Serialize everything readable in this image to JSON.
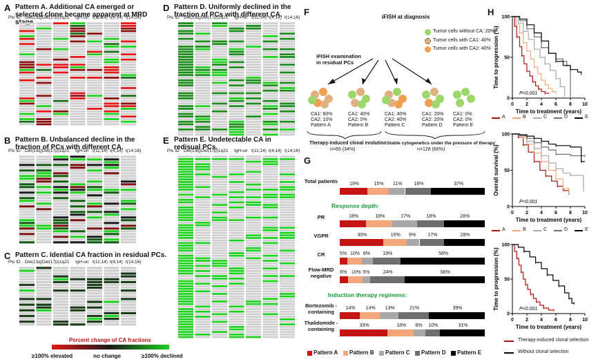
{
  "panels": {
    "A": {
      "letter": "A",
      "title": "Pattern A. Additional CA emerged or selected clone became apparent at MRD stage."
    },
    "B": {
      "letter": "B",
      "title": "Pattern B. Unbalanced decline in the fraction of PCs with different CA."
    },
    "C": {
      "letter": "C",
      "title": "Pattern C. Idential CA fraction in residual PCs."
    },
    "D": {
      "letter": "D",
      "title": "Pattern D. Uniformly declined in the fraction of PCs with different CA."
    },
    "E": {
      "letter": "E",
      "title": "Pattern E. Undetectable CA in redisual PCs."
    },
    "F": {
      "letter": "F"
    },
    "G": {
      "letter": "G"
    },
    "H": {
      "letter": "H"
    }
  },
  "heat_headers": [
    "Pts ID",
    "Del(13q)",
    "Del(17p)",
    "1q21",
    "IgH-un",
    "t(11;14)",
    "t(4;14)",
    "t(14;16)"
  ],
  "heat_legend": {
    "title": "Percent change of CA fractions",
    "left": "≥100% elevated",
    "mid": "no change",
    "right": "≥100% declined",
    "colors": {
      "elevated": "#e01818",
      "none": "#1a1a1a",
      "declined": "#1fd01f",
      "empty": "#cfcfcf"
    }
  },
  "panelF": {
    "title": "iFISH at diagnosis",
    "legend": [
      "Tumor cells without CA: 20%",
      "Tumor cells with CA1: 40%",
      "Tumor cells with CA2: 40%"
    ],
    "residual_label": "iFISH examination in residual PCs",
    "patterns": [
      {
        "ca1": "CA1: 80%",
        "ca2": "CA2: 10%",
        "name": "Pattern A"
      },
      {
        "ca1": "CA1: 40%",
        "ca2": "CA2: 0%",
        "name": "Pattern B"
      },
      {
        "ca1": "CA1: 40%",
        "ca2": "CA2: 40%",
        "name": "Pattern C"
      },
      {
        "ca1": "CA1: 20%",
        "ca2": "CA2: 20%",
        "name": "Pattern D"
      },
      {
        "ca1": "CA1: 0%",
        "ca2": "CA2: 0%",
        "name": "Pattern E"
      }
    ],
    "group_left": {
      "line1": "Therapy-induced clonal evolution",
      "line2": "n=65 (34%)"
    },
    "group_right": {
      "line1": "Stable cytogenetics under the pressure of therapy",
      "line2": "n=128 (66%)"
    }
  },
  "panelG": {
    "section_response": "Response depth:",
    "section_induction": "Induction therapy regimens:",
    "legend": [
      "Pattern A",
      "Pattern B",
      "Pattern C",
      "Pattern D",
      "Pattern E"
    ]
  },
  "panelH": {
    "ylabels": [
      "Time to progression (%)",
      "Overall survival (%)",
      "Time to progression (%)"
    ],
    "xlabel": "Time to treatment (years)",
    "pvalue": "P<0.001",
    "legend1": [
      "A",
      "B",
      "C",
      "D",
      "E"
    ],
    "legend3": [
      "Therapy-induced clonal selection",
      "Without clonal selection"
    ]
  },
  "chart_data": [
    {
      "type": "bar",
      "stacked": true,
      "orientation": "horizontal",
      "series_names": [
        "Pattern A",
        "Pattern B",
        "Pattern C",
        "Pattern D",
        "Pattern E"
      ],
      "series_colors": [
        "#c41414",
        "#f2a77a",
        "#a8a8a8",
        "#6e6e6e",
        "#000000"
      ],
      "rows": [
        {
          "label": "Total patients",
          "values": [
            19,
            15,
            11,
            18,
            37
          ],
          "labels": [
            "19%",
            "15%",
            "11%",
            "18%",
            "37%"
          ]
        },
        {
          "label": "PR",
          "values": [
            18,
            18,
            17,
            18,
            28
          ],
          "labels": [
            "18%",
            "18%",
            "17%",
            "18%",
            "28%"
          ]
        },
        {
          "label": "VGPR",
          "values": [
            30,
            16,
            9,
            17,
            28
          ],
          "labels": [
            "30%",
            "16%",
            "9%",
            "17%",
            "28%"
          ]
        },
        {
          "label": "CR",
          "values": [
            5,
            10,
            8,
            19,
            58
          ],
          "labels": [
            "5%",
            "10%",
            "8%",
            "19%",
            "58%"
          ]
        },
        {
          "label": "Flow-MRD negative",
          "values": [
            6,
            10,
            5,
            24,
            56
          ],
          "labels": [
            "6%",
            "10%",
            "5%",
            "24%",
            "56%"
          ]
        },
        {
          "label": "Bortezomib -containing",
          "values": [
            14,
            14,
            13,
            21,
            39
          ],
          "labels": [
            "14%",
            "14%",
            "13%",
            "21%",
            "39%"
          ]
        },
        {
          "label": "Thalidomide -containing",
          "values": [
            33,
            18,
            8,
            10,
            31
          ],
          "labels": [
            "33%",
            "18%",
            "8%",
            "10%",
            "31%"
          ]
        }
      ]
    },
    {
      "type": "line",
      "step": true,
      "title": "",
      "xlabel": "Time to treatment (years)",
      "ylabel": "Time to progression (%)",
      "xlim": [
        0,
        10
      ],
      "ylim": [
        0,
        100
      ],
      "xticks": [
        0,
        2,
        4,
        6,
        8,
        10
      ],
      "yticks": [
        0,
        50,
        100
      ],
      "series": [
        {
          "name": "A",
          "color": "#b01010",
          "x": [
            0,
            0.3,
            0.6,
            1,
            1.3,
            1.6,
            2,
            2.4,
            2.8,
            3.2,
            3.6,
            4,
            4.5,
            5
          ],
          "y": [
            100,
            88,
            75,
            63,
            52,
            42,
            33,
            27,
            20,
            15,
            11,
            8,
            6,
            5
          ]
        },
        {
          "name": "B",
          "color": "#f2a77a",
          "x": [
            0,
            0.5,
            1,
            1.5,
            2,
            2.5,
            3,
            3.5,
            4,
            4.5,
            5,
            5.5,
            6
          ],
          "y": [
            100,
            90,
            80,
            68,
            58,
            48,
            38,
            30,
            22,
            16,
            12,
            8,
            6
          ]
        },
        {
          "name": "C",
          "color": "#a8a8a8",
          "x": [
            0,
            0.8,
            1.5,
            2.2,
            3,
            3.8,
            4.5,
            5.2,
            6,
            6.6,
            7.2
          ],
          "y": [
            100,
            92,
            82,
            72,
            60,
            50,
            42,
            34,
            24,
            14,
            0
          ]
        },
        {
          "name": "D",
          "color": "#6e6e6e",
          "x": [
            0,
            1,
            2,
            3,
            4,
            5,
            6,
            7,
            7.5,
            8
          ],
          "y": [
            100,
            95,
            85,
            75,
            62,
            55,
            48,
            45,
            40,
            0
          ]
        },
        {
          "name": "E",
          "color": "#000000",
          "x": [
            0,
            1,
            2,
            3,
            4,
            5,
            6,
            7,
            8,
            9,
            9.5
          ],
          "y": [
            100,
            97,
            90,
            80,
            70,
            55,
            45,
            40,
            35,
            32,
            30
          ]
        }
      ]
    },
    {
      "type": "line",
      "step": true,
      "title": "",
      "xlabel": "Time to treatment (years)",
      "ylabel": "Overall survival (%)",
      "xlim": [
        0,
        10
      ],
      "ylim": [
        0,
        100
      ],
      "xticks": [
        0,
        2,
        4,
        6,
        8,
        10
      ],
      "yticks": [
        0,
        50,
        100
      ],
      "series": [
        {
          "name": "A",
          "color": "#b01010",
          "x": [
            0,
            0.8,
            1.5,
            2.2,
            3,
            3.8,
            4.6,
            5.4,
            6.2,
            7,
            7.8
          ],
          "y": [
            100,
            95,
            85,
            75,
            62,
            50,
            42,
            35,
            28,
            22,
            18
          ]
        },
        {
          "name": "B",
          "color": "#f2a77a",
          "x": [
            0,
            1,
            2,
            3,
            4,
            5,
            6,
            7,
            7.8
          ],
          "y": [
            100,
            95,
            86,
            74,
            62,
            50,
            38,
            25,
            20
          ]
        },
        {
          "name": "C",
          "color": "#a8a8a8",
          "x": [
            0,
            1,
            2,
            3,
            4,
            5,
            6,
            7,
            8,
            9,
            9.8
          ],
          "y": [
            100,
            97,
            90,
            80,
            70,
            60,
            52,
            46,
            43,
            43,
            22
          ]
        },
        {
          "name": "D",
          "color": "#6e6e6e",
          "x": [
            0,
            1,
            2,
            3,
            4,
            5,
            6,
            8,
            10
          ],
          "y": [
            100,
            98,
            94,
            88,
            82,
            78,
            72,
            70,
            70
          ]
        },
        {
          "name": "E",
          "color": "#000000",
          "x": [
            0,
            1,
            2,
            3,
            4,
            5,
            6,
            8,
            9.5,
            10
          ],
          "y": [
            100,
            99,
            97,
            94,
            90,
            86,
            84,
            82,
            62,
            62
          ]
        }
      ]
    },
    {
      "type": "line",
      "step": true,
      "title": "",
      "xlabel": "Time to treatment (years)",
      "ylabel": "Time to progression (%)",
      "xlim": [
        0,
        10
      ],
      "ylim": [
        0,
        100
      ],
      "xticks": [
        0,
        2,
        4,
        6,
        8,
        10
      ],
      "yticks": [
        0,
        50,
        100
      ],
      "series": [
        {
          "name": "Therapy-induced clonal selection",
          "color": "#b01010",
          "x": [
            0,
            0.3,
            0.6,
            0.9,
            1.2,
            1.5,
            1.8,
            2.1,
            2.5,
            2.9,
            3.3,
            3.8,
            4.3,
            5,
            5.7
          ],
          "y": [
            100,
            90,
            80,
            70,
            60,
            50,
            42,
            35,
            28,
            22,
            17,
            12,
            8,
            5,
            5
          ]
        },
        {
          "name": "Without clonal selection",
          "color": "#000000",
          "x": [
            0,
            0.8,
            1.6,
            2.4,
            3.2,
            4,
            4.8,
            5.6,
            6.4,
            7.2,
            7.8,
            8.2,
            8.5
          ],
          "y": [
            100,
            96,
            90,
            82,
            74,
            65,
            56,
            48,
            40,
            30,
            22,
            15,
            15
          ]
        }
      ]
    }
  ]
}
